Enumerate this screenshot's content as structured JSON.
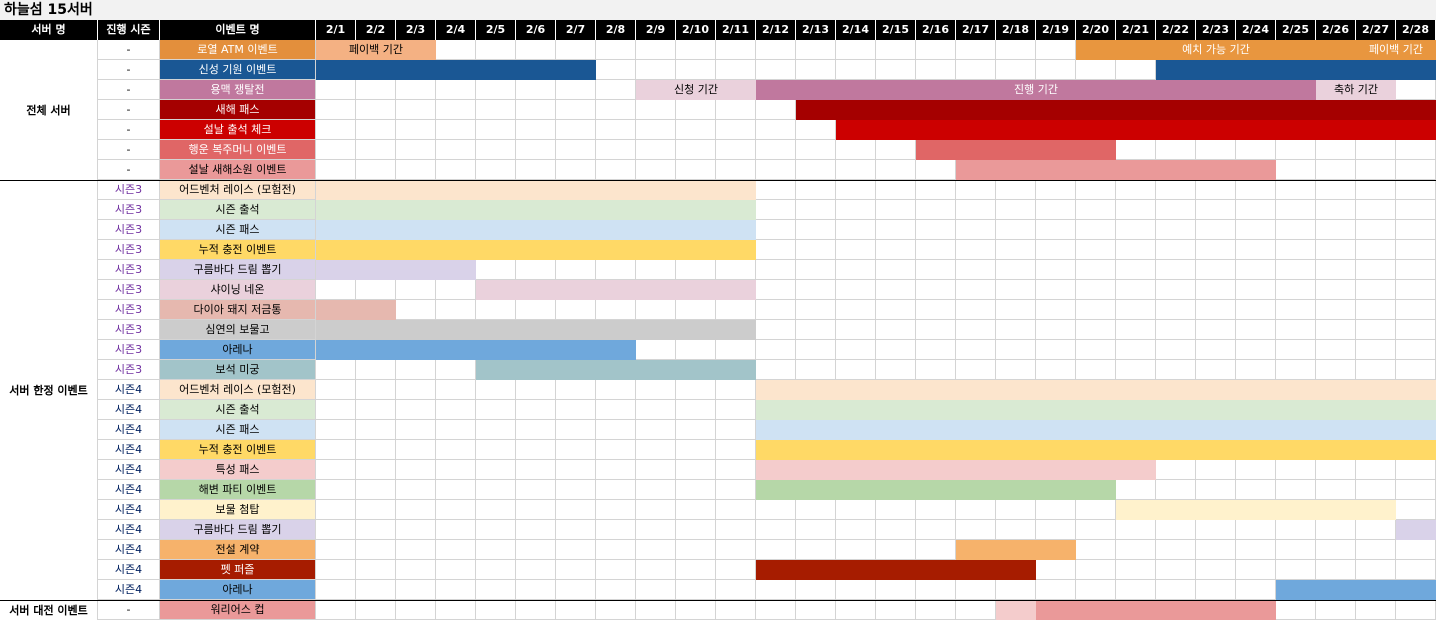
{
  "title": "하늘섬 15서버",
  "headers": {
    "server": "서버 명",
    "season": "진행 시즌",
    "event": "이벤트 명"
  },
  "dates": [
    "2/1",
    "2/2",
    "2/3",
    "2/4",
    "2/5",
    "2/6",
    "2/7",
    "2/8",
    "2/9",
    "2/10",
    "2/11",
    "2/12",
    "2/13",
    "2/14",
    "2/15",
    "2/16",
    "2/17",
    "2/18",
    "2/19",
    "2/20",
    "2/21",
    "2/22",
    "2/23",
    "2/24",
    "2/25",
    "2/26",
    "2/27",
    "2/28"
  ],
  "groups": [
    {
      "label": "전체 서버",
      "start_row": 0,
      "rows": 7
    },
    {
      "label": "서버 한정 이벤트",
      "start_row": 7,
      "rows": 21
    },
    {
      "label": "서버 대전 이벤트",
      "start_row": 28,
      "rows": 1
    }
  ],
  "season_colors": {
    "시즌3": "#7030a0",
    "시즌4": "#002060",
    "-": "#000000"
  },
  "rows": [
    {
      "season": "-",
      "name": "로열 ATM 이벤트",
      "color": "#e38f3c",
      "text_color": "#ffffff",
      "bars": [
        {
          "start": 1,
          "end": 3,
          "color": "#f4b183",
          "label": "페이백 기간"
        },
        {
          "start": 20,
          "end": 26,
          "color": "#e8963f",
          "label": "예치 가능 기간"
        },
        {
          "start": 27,
          "end": 28,
          "color": "#e8963f",
          "label": "페이백 기간"
        }
      ]
    },
    {
      "season": "-",
      "name": "신성 기원 이벤트",
      "color": "#1a5794",
      "text_color": "#ffffff",
      "bars": [
        {
          "start": 1,
          "end": 7,
          "color": "#1a5794",
          "label": ""
        },
        {
          "start": 22,
          "end": 28,
          "color": "#1a5794",
          "label": ""
        }
      ]
    },
    {
      "season": "-",
      "name": "용맥 쟁탈전",
      "color": "#c0789e",
      "text_color": "#ffffff",
      "bars": [
        {
          "start": 9,
          "end": 11,
          "color": "#ead1dc",
          "label": "신청 기간"
        },
        {
          "start": 12,
          "end": 25,
          "color": "#c0789e",
          "label": "진행 기간"
        },
        {
          "start": 26,
          "end": 27,
          "color": "#ead1dc",
          "label": "축하 기간"
        }
      ]
    },
    {
      "season": "-",
      "name": "새해 패스",
      "color": "#a50000",
      "text_color": "#ffffff",
      "bars": [
        {
          "start": 13,
          "end": 28,
          "color": "#a50000",
          "label": ""
        }
      ]
    },
    {
      "season": "-",
      "name": "설날 출석 체크",
      "color": "#cc0000",
      "text_color": "#ffffff",
      "bars": [
        {
          "start": 14,
          "end": 28,
          "color": "#cc0000",
          "label": ""
        }
      ]
    },
    {
      "season": "-",
      "name": "행운 복주머니 이벤트",
      "color": "#e06666",
      "text_color": "#ffffff",
      "bars": [
        {
          "start": 16,
          "end": 20,
          "color": "#e06666",
          "label": ""
        }
      ]
    },
    {
      "season": "-",
      "name": "설날 새해소원 이벤트",
      "color": "#ea9999",
      "text_color": "#000000",
      "bars": [
        {
          "start": 17,
          "end": 24,
          "color": "#ea9999",
          "label": ""
        }
      ]
    },
    {
      "season": "시즌3",
      "name": "어드벤처 레이스 (모험전)",
      "color": "#fce5cd",
      "text_color": "#000000",
      "bars": [
        {
          "start": 1,
          "end": 11,
          "color": "#fce5cd",
          "label": ""
        }
      ]
    },
    {
      "season": "시즌3",
      "name": "시즌 출석",
      "color": "#d9ead3",
      "text_color": "#000000",
      "bars": [
        {
          "start": 1,
          "end": 11,
          "color": "#d9ead3",
          "label": ""
        }
      ]
    },
    {
      "season": "시즌3",
      "name": "시즌 패스",
      "color": "#cfe2f3",
      "text_color": "#000000",
      "bars": [
        {
          "start": 1,
          "end": 11,
          "color": "#cfe2f3",
          "label": ""
        }
      ]
    },
    {
      "season": "시즌3",
      "name": "누적 충전 이벤트",
      "color": "#ffd966",
      "text_color": "#000000",
      "bars": [
        {
          "start": 1,
          "end": 11,
          "color": "#ffd966",
          "label": ""
        }
      ]
    },
    {
      "season": "시즌3",
      "name": "구름바다 드림 뽑기",
      "color": "#d9d2e9",
      "text_color": "#000000",
      "bars": [
        {
          "start": 1,
          "end": 4,
          "color": "#d9d2e9",
          "label": ""
        }
      ]
    },
    {
      "season": "시즌3",
      "name": "샤이닝 네온",
      "color": "#ead1dc",
      "text_color": "#000000",
      "bars": [
        {
          "start": 5,
          "end": 11,
          "color": "#ead1dc",
          "label": ""
        }
      ]
    },
    {
      "season": "시즌3",
      "name": "다이아 돼지 저금통",
      "color": "#e6b8af",
      "text_color": "#000000",
      "bars": [
        {
          "start": 1,
          "end": 2,
          "color": "#e6b8af",
          "label": ""
        }
      ]
    },
    {
      "season": "시즌3",
      "name": "심연의 보물고",
      "color": "#cccccc",
      "text_color": "#000000",
      "bars": [
        {
          "start": 1,
          "end": 11,
          "color": "#cccccc",
          "label": ""
        }
      ]
    },
    {
      "season": "시즌3",
      "name": "아레나",
      "color": "#6fa8dc",
      "text_color": "#000000",
      "bars": [
        {
          "start": 1,
          "end": 8,
          "color": "#6fa8dc",
          "label": ""
        }
      ]
    },
    {
      "season": "시즌3",
      "name": "보석 미궁",
      "color": "#a2c4c9",
      "text_color": "#000000",
      "bars": [
        {
          "start": 5,
          "end": 11,
          "color": "#a2c4c9",
          "label": ""
        }
      ]
    },
    {
      "season": "시즌4",
      "name": "어드벤처 레이스 (모험전)",
      "color": "#fce5cd",
      "text_color": "#000000",
      "bars": [
        {
          "start": 12,
          "end": 28,
          "color": "#fce5cd",
          "label": ""
        }
      ]
    },
    {
      "season": "시즌4",
      "name": "시즌 출석",
      "color": "#d9ead3",
      "text_color": "#000000",
      "bars": [
        {
          "start": 12,
          "end": 28,
          "color": "#d9ead3",
          "label": ""
        }
      ]
    },
    {
      "season": "시즌4",
      "name": "시즌 패스",
      "color": "#cfe2f3",
      "text_color": "#000000",
      "bars": [
        {
          "start": 12,
          "end": 28,
          "color": "#cfe2f3",
          "label": ""
        }
      ]
    },
    {
      "season": "시즌4",
      "name": "누적 충전 이벤트",
      "color": "#ffd966",
      "text_color": "#000000",
      "bars": [
        {
          "start": 12,
          "end": 28,
          "color": "#ffd966",
          "label": ""
        }
      ]
    },
    {
      "season": "시즌4",
      "name": "특성 패스",
      "color": "#f4cccc",
      "text_color": "#000000",
      "bars": [
        {
          "start": 12,
          "end": 21,
          "color": "#f4cccc",
          "label": ""
        }
      ]
    },
    {
      "season": "시즌4",
      "name": "해변 파티 이벤트",
      "color": "#b6d7a8",
      "text_color": "#000000",
      "bars": [
        {
          "start": 12,
          "end": 20,
          "color": "#b6d7a8",
          "label": ""
        }
      ]
    },
    {
      "season": "시즌4",
      "name": "보물 첨탑",
      "color": "#fff2cc",
      "text_color": "#000000",
      "bars": [
        {
          "start": 21,
          "end": 27,
          "color": "#fff2cc",
          "label": ""
        }
      ]
    },
    {
      "season": "시즌4",
      "name": "구름바다 드림 뽑기",
      "color": "#d9d2e9",
      "text_color": "#000000",
      "bars": [
        {
          "start": 28,
          "end": 28,
          "color": "#d9d2e9",
          "label": ""
        }
      ]
    },
    {
      "season": "시즌4",
      "name": "전설 계약",
      "color": "#f6b26b",
      "text_color": "#000000",
      "bars": [
        {
          "start": 17,
          "end": 19,
          "color": "#f6b26b",
          "label": ""
        }
      ]
    },
    {
      "season": "시즌4",
      "name": "펫 퍼즐",
      "color": "#a61c00",
      "text_color": "#ffffff",
      "bars": [
        {
          "start": 12,
          "end": 18,
          "color": "#a61c00",
          "label": ""
        }
      ]
    },
    {
      "season": "시즌4",
      "name": "아레나",
      "color": "#6fa8dc",
      "text_color": "#000000",
      "bars": [
        {
          "start": 25,
          "end": 28,
          "color": "#6fa8dc",
          "label": ""
        }
      ]
    },
    {
      "season": "-",
      "name": "워리어스 컵",
      "color": "#ea9999",
      "text_color": "#000000",
      "bars": [
        {
          "start": 18,
          "end": 18,
          "color": "#f4cccc",
          "label": ""
        },
        {
          "start": 19,
          "end": 24,
          "color": "#ea9999",
          "label": ""
        }
      ]
    }
  ]
}
